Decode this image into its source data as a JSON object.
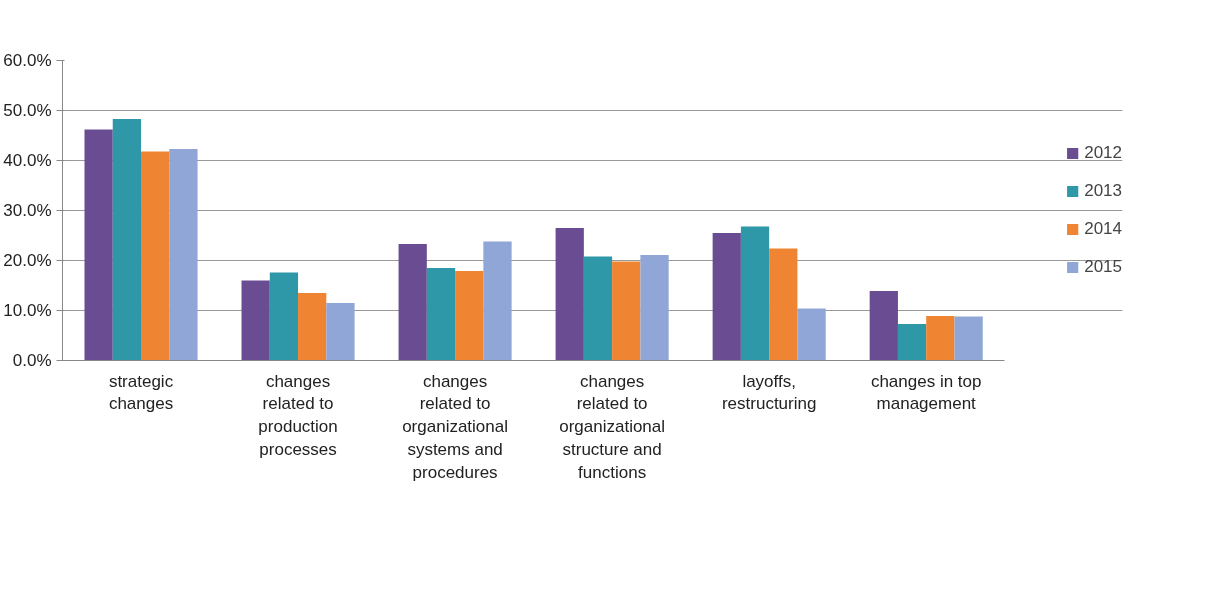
{
  "chart_data": {
    "type": "bar",
    "categories": [
      "strategic changes",
      "changes related to production processes",
      "changes related to organizational systems and procedures",
      "changes related to organizational structure and functions",
      "layoffs, restructuring",
      "changes in top management"
    ],
    "series": [
      {
        "name": "2012",
        "color": "#6a4c93",
        "values": [
          46.2,
          16.0,
          23.3,
          26.5,
          25.5,
          13.9
        ]
      },
      {
        "name": "2013",
        "color": "#2e97a8",
        "values": [
          48.3,
          17.6,
          18.5,
          20.8,
          26.8,
          7.3
        ]
      },
      {
        "name": "2014",
        "color": "#ef8432",
        "values": [
          41.8,
          13.5,
          17.9,
          19.8,
          22.4,
          8.9
        ]
      },
      {
        "name": "2015",
        "color": "#8fa6d6",
        "values": [
          42.3,
          11.5,
          23.8,
          21.1,
          10.4,
          8.8
        ]
      }
    ],
    "ylim": [
      0,
      60
    ],
    "yticks": [
      {
        "value": 0,
        "label": "0.0%"
      },
      {
        "value": 10,
        "label": "10.0%"
      },
      {
        "value": 20,
        "label": "20.0%"
      },
      {
        "value": 30,
        "label": "30.0%"
      },
      {
        "value": 40,
        "label": "40.0%"
      },
      {
        "value": 50,
        "label": "50.0%"
      },
      {
        "value": 60,
        "label": "60.0%"
      }
    ],
    "grid": "y",
    "legend": "right"
  }
}
